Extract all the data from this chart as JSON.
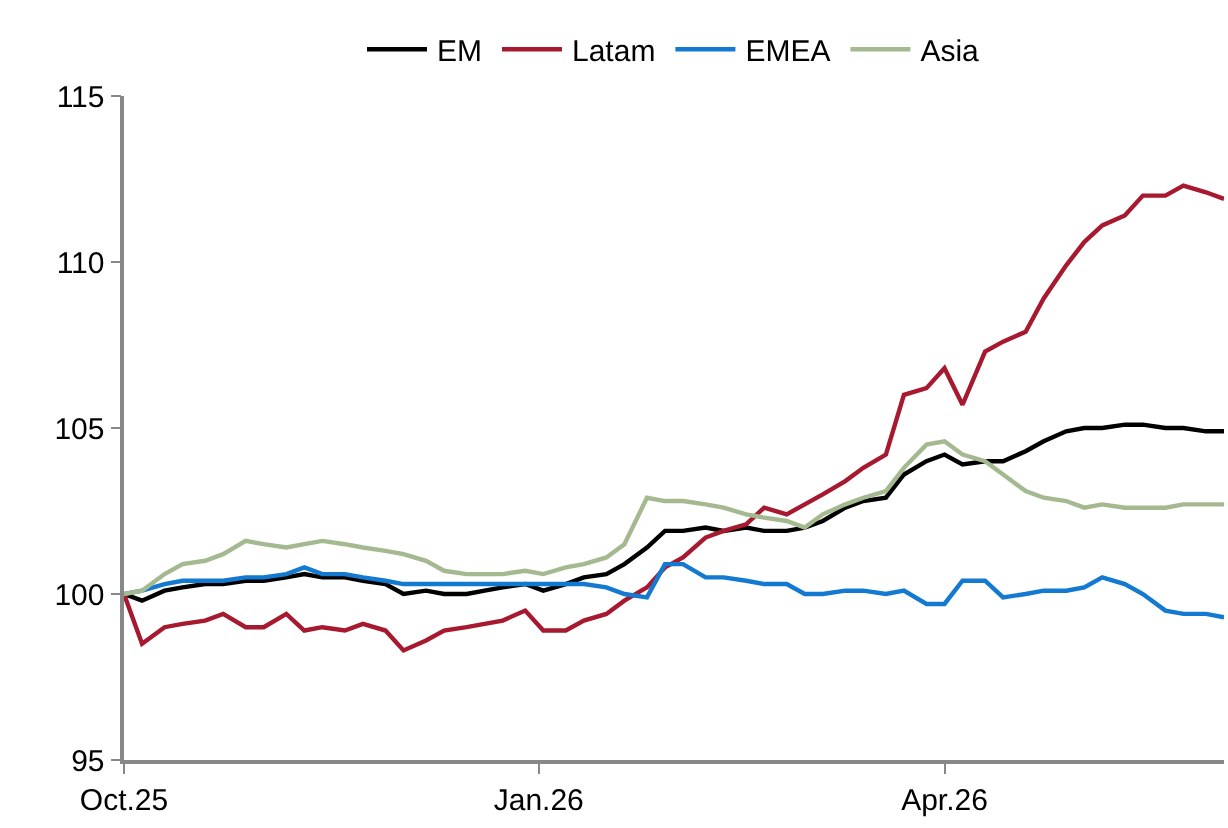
{
  "chart_data": {
    "type": "line",
    "x": [
      "2025-10-01",
      "2025-10-05",
      "2025-10-10",
      "2025-10-14",
      "2025-10-19",
      "2025-10-23",
      "2025-10-28",
      "2025-11-01",
      "2025-11-06",
      "2025-11-10",
      "2025-11-14",
      "2025-11-19",
      "2025-11-23",
      "2025-11-28",
      "2025-12-02",
      "2025-12-07",
      "2025-12-11",
      "2025-12-16",
      "2025-12-20",
      "2025-12-24",
      "2025-12-29",
      "2026-01-02",
      "2026-01-07",
      "2026-01-11",
      "2026-01-16",
      "2026-01-20",
      "2026-01-25",
      "2026-01-29",
      "2026-02-02",
      "2026-02-07",
      "2026-02-11",
      "2026-02-16",
      "2026-02-20",
      "2026-02-25",
      "2026-03-01",
      "2026-03-05",
      "2026-03-10",
      "2026-03-14",
      "2026-03-19",
      "2026-03-23",
      "2026-03-28",
      "2026-04-01",
      "2026-04-05",
      "2026-04-10",
      "2026-04-14",
      "2026-04-19",
      "2026-04-23",
      "2026-04-28",
      "2026-05-02",
      "2026-05-06",
      "2026-05-11",
      "2026-05-15",
      "2026-05-20",
      "2026-05-24",
      "2026-05-29",
      "2026-06-02"
    ],
    "series": [
      {
        "name": "EM",
        "color": "#000000",
        "values": [
          100.0,
          99.8,
          100.1,
          100.2,
          100.3,
          100.3,
          100.4,
          100.4,
          100.5,
          100.6,
          100.5,
          100.5,
          100.4,
          100.3,
          100.0,
          100.1,
          100.0,
          100.0,
          100.1,
          100.2,
          100.3,
          100.1,
          100.3,
          100.5,
          100.6,
          100.9,
          101.4,
          101.9,
          101.9,
          102.0,
          101.9,
          102.0,
          101.9,
          101.9,
          102.0,
          102.2,
          102.6,
          102.8,
          102.9,
          103.6,
          104.0,
          104.2,
          103.9,
          104.0,
          104.0,
          104.3,
          104.6,
          104.9,
          105.0,
          105.0,
          105.1,
          105.1,
          105.0,
          105.0,
          104.9,
          104.9
        ]
      },
      {
        "name": "Latam",
        "color": "#a6192e",
        "values": [
          100.0,
          98.5,
          99.0,
          99.1,
          99.2,
          99.4,
          99.0,
          99.0,
          99.4,
          98.9,
          99.0,
          98.9,
          99.1,
          98.9,
          98.3,
          98.6,
          98.9,
          99.0,
          99.1,
          99.2,
          99.5,
          98.9,
          98.9,
          99.2,
          99.4,
          99.8,
          100.2,
          100.8,
          101.1,
          101.7,
          101.9,
          102.1,
          102.6,
          102.4,
          102.7,
          103.0,
          103.4,
          103.8,
          104.2,
          106.0,
          106.2,
          106.8,
          105.7,
          107.3,
          107.6,
          107.9,
          108.9,
          109.9,
          110.6,
          111.1,
          111.4,
          112.0,
          112.0,
          112.3,
          112.1,
          111.9
        ]
      },
      {
        "name": "EMEA",
        "color": "#1479d0",
        "values": [
          100.0,
          100.1,
          100.3,
          100.4,
          100.4,
          100.4,
          100.5,
          100.5,
          100.6,
          100.8,
          100.6,
          100.6,
          100.5,
          100.4,
          100.3,
          100.3,
          100.3,
          100.3,
          100.3,
          100.3,
          100.3,
          100.3,
          100.3,
          100.3,
          100.2,
          100.0,
          99.9,
          100.9,
          100.9,
          100.5,
          100.5,
          100.4,
          100.3,
          100.3,
          100.0,
          100.0,
          100.1,
          100.1,
          100.0,
          100.1,
          99.7,
          99.7,
          100.4,
          100.4,
          99.9,
          100.0,
          100.1,
          100.1,
          100.2,
          100.5,
          100.3,
          100.0,
          99.5,
          99.4,
          99.4,
          99.3
        ]
      },
      {
        "name": "Asia",
        "color": "#a4b98f",
        "values": [
          100.0,
          100.1,
          100.6,
          100.9,
          101.0,
          101.2,
          101.6,
          101.5,
          101.4,
          101.5,
          101.6,
          101.5,
          101.4,
          101.3,
          101.2,
          101.0,
          100.7,
          100.6,
          100.6,
          100.6,
          100.7,
          100.6,
          100.8,
          100.9,
          101.1,
          101.5,
          102.9,
          102.8,
          102.8,
          102.7,
          102.6,
          102.4,
          102.3,
          102.2,
          102.0,
          102.4,
          102.7,
          102.9,
          103.1,
          103.8,
          104.5,
          104.6,
          104.2,
          104.0,
          103.6,
          103.1,
          102.9,
          102.8,
          102.6,
          102.7,
          102.6,
          102.6,
          102.6,
          102.7,
          102.7,
          102.7
        ]
      }
    ],
    "xlim": [
      "2025-10-01",
      "2026-06-02"
    ],
    "xticks": [
      {
        "value": "2025-10-01",
        "label": "Oct.25"
      },
      {
        "value": "2026-01-01",
        "label": "Jan.26"
      },
      {
        "value": "2026-04-01",
        "label": "Apr.26"
      }
    ],
    "ylim": [
      95,
      115
    ],
    "yticks": [
      95,
      100,
      105,
      110,
      115
    ],
    "grid": false,
    "legend": "top",
    "marker": "none",
    "line_style": "solid"
  }
}
